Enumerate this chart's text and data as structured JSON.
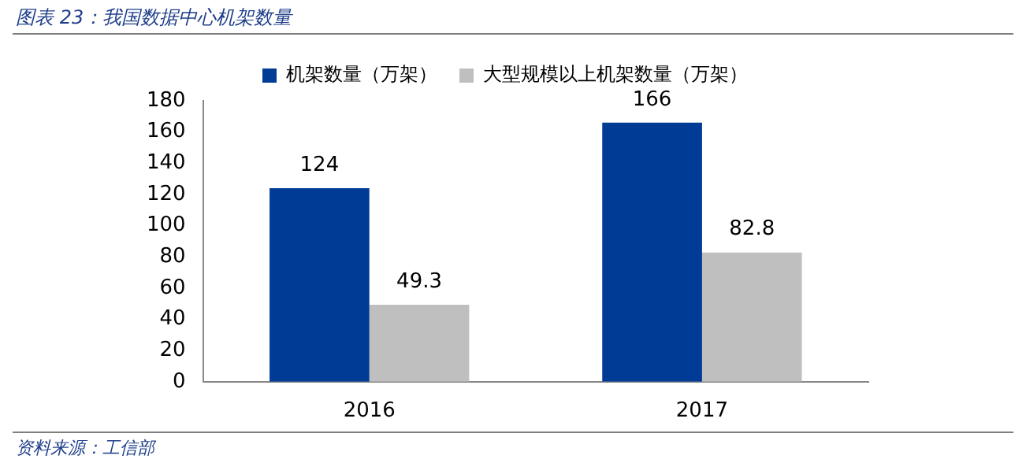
{
  "chart_data": {
    "type": "bar",
    "title": "图表 23：我国数据中心机架数量",
    "categories": [
      "2016",
      "2017"
    ],
    "series": [
      {
        "name": "机架数量（万架）",
        "color": "#003b95",
        "values": [
          124,
          166
        ]
      },
      {
        "name": "大型规模以上机架数量（万架）",
        "color": "#bfbfbf",
        "values": [
          49.3,
          82.8
        ]
      }
    ],
    "ylim": [
      0,
      180
    ],
    "yticks": [
      0,
      20,
      40,
      60,
      80,
      100,
      120,
      140,
      160,
      180
    ],
    "grid": false,
    "legend": "top",
    "data_labels": true,
    "annotations": [
      "资料来源：工信部"
    ]
  }
}
